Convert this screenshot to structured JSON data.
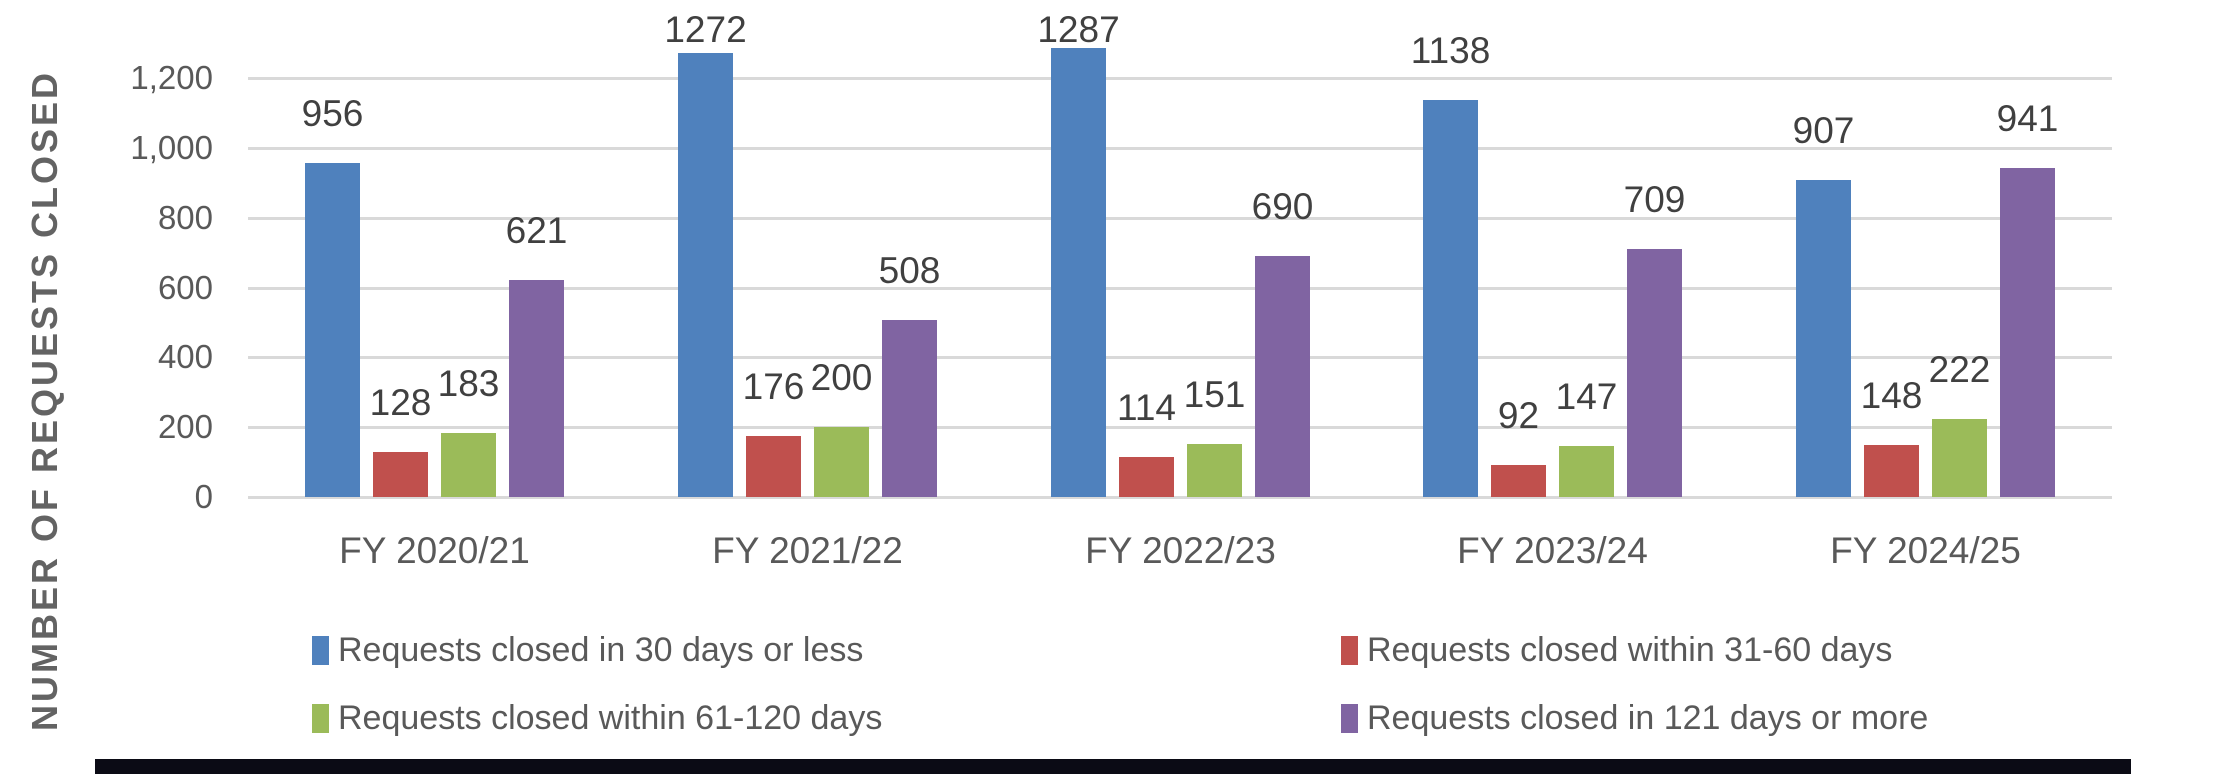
{
  "chart_data": {
    "type": "bar",
    "title": "",
    "xlabel": "",
    "ylabel": "NUMBER OF REQUESTS CLOSED",
    "categories": [
      "FY 2020/21",
      "FY 2021/22",
      "FY 2022/23",
      "FY 2023/24",
      "FY 2024/25"
    ],
    "series": [
      {
        "name": "Requests closed in 30 days or less",
        "color": "#4F81BD",
        "values": [
          956,
          1272,
          1287,
          1138,
          907
        ]
      },
      {
        "name": "Requests closed within 31-60 days",
        "color": "#C0504D",
        "values": [
          128,
          176,
          114,
          92,
          148
        ]
      },
      {
        "name": "Requests closed within 61-120 days",
        "color": "#9BBB59",
        "values": [
          183,
          200,
          151,
          147,
          222
        ]
      },
      {
        "name": "Requests closed in 121 days or more",
        "color": "#8064A2",
        "values": [
          621,
          508,
          690,
          709,
          941
        ]
      }
    ],
    "y_ticks": [
      {
        "value": 0,
        "label": "0"
      },
      {
        "value": 200,
        "label": "200"
      },
      {
        "value": 400,
        "label": "400"
      },
      {
        "value": 600,
        "label": "600"
      },
      {
        "value": 800,
        "label": "800"
      },
      {
        "value": 1000,
        "label": "1,000"
      },
      {
        "value": 1200,
        "label": "1,200"
      }
    ],
    "ylim": [
      0,
      1400
    ],
    "grid": "horizontal",
    "data_labels": true,
    "legend_position": "bottom",
    "legend_columns": 2
  },
  "colors": {
    "background": "#FFFFFF",
    "gridline": "#D9D9D9",
    "axis_line": "#D9D9D9",
    "tick_text": "#595959",
    "data_label_text": "#404040",
    "category_text": "#595959",
    "legend_text": "#595959",
    "axis_title_text": "#636363",
    "bottom_bar": "#0B0B15"
  }
}
